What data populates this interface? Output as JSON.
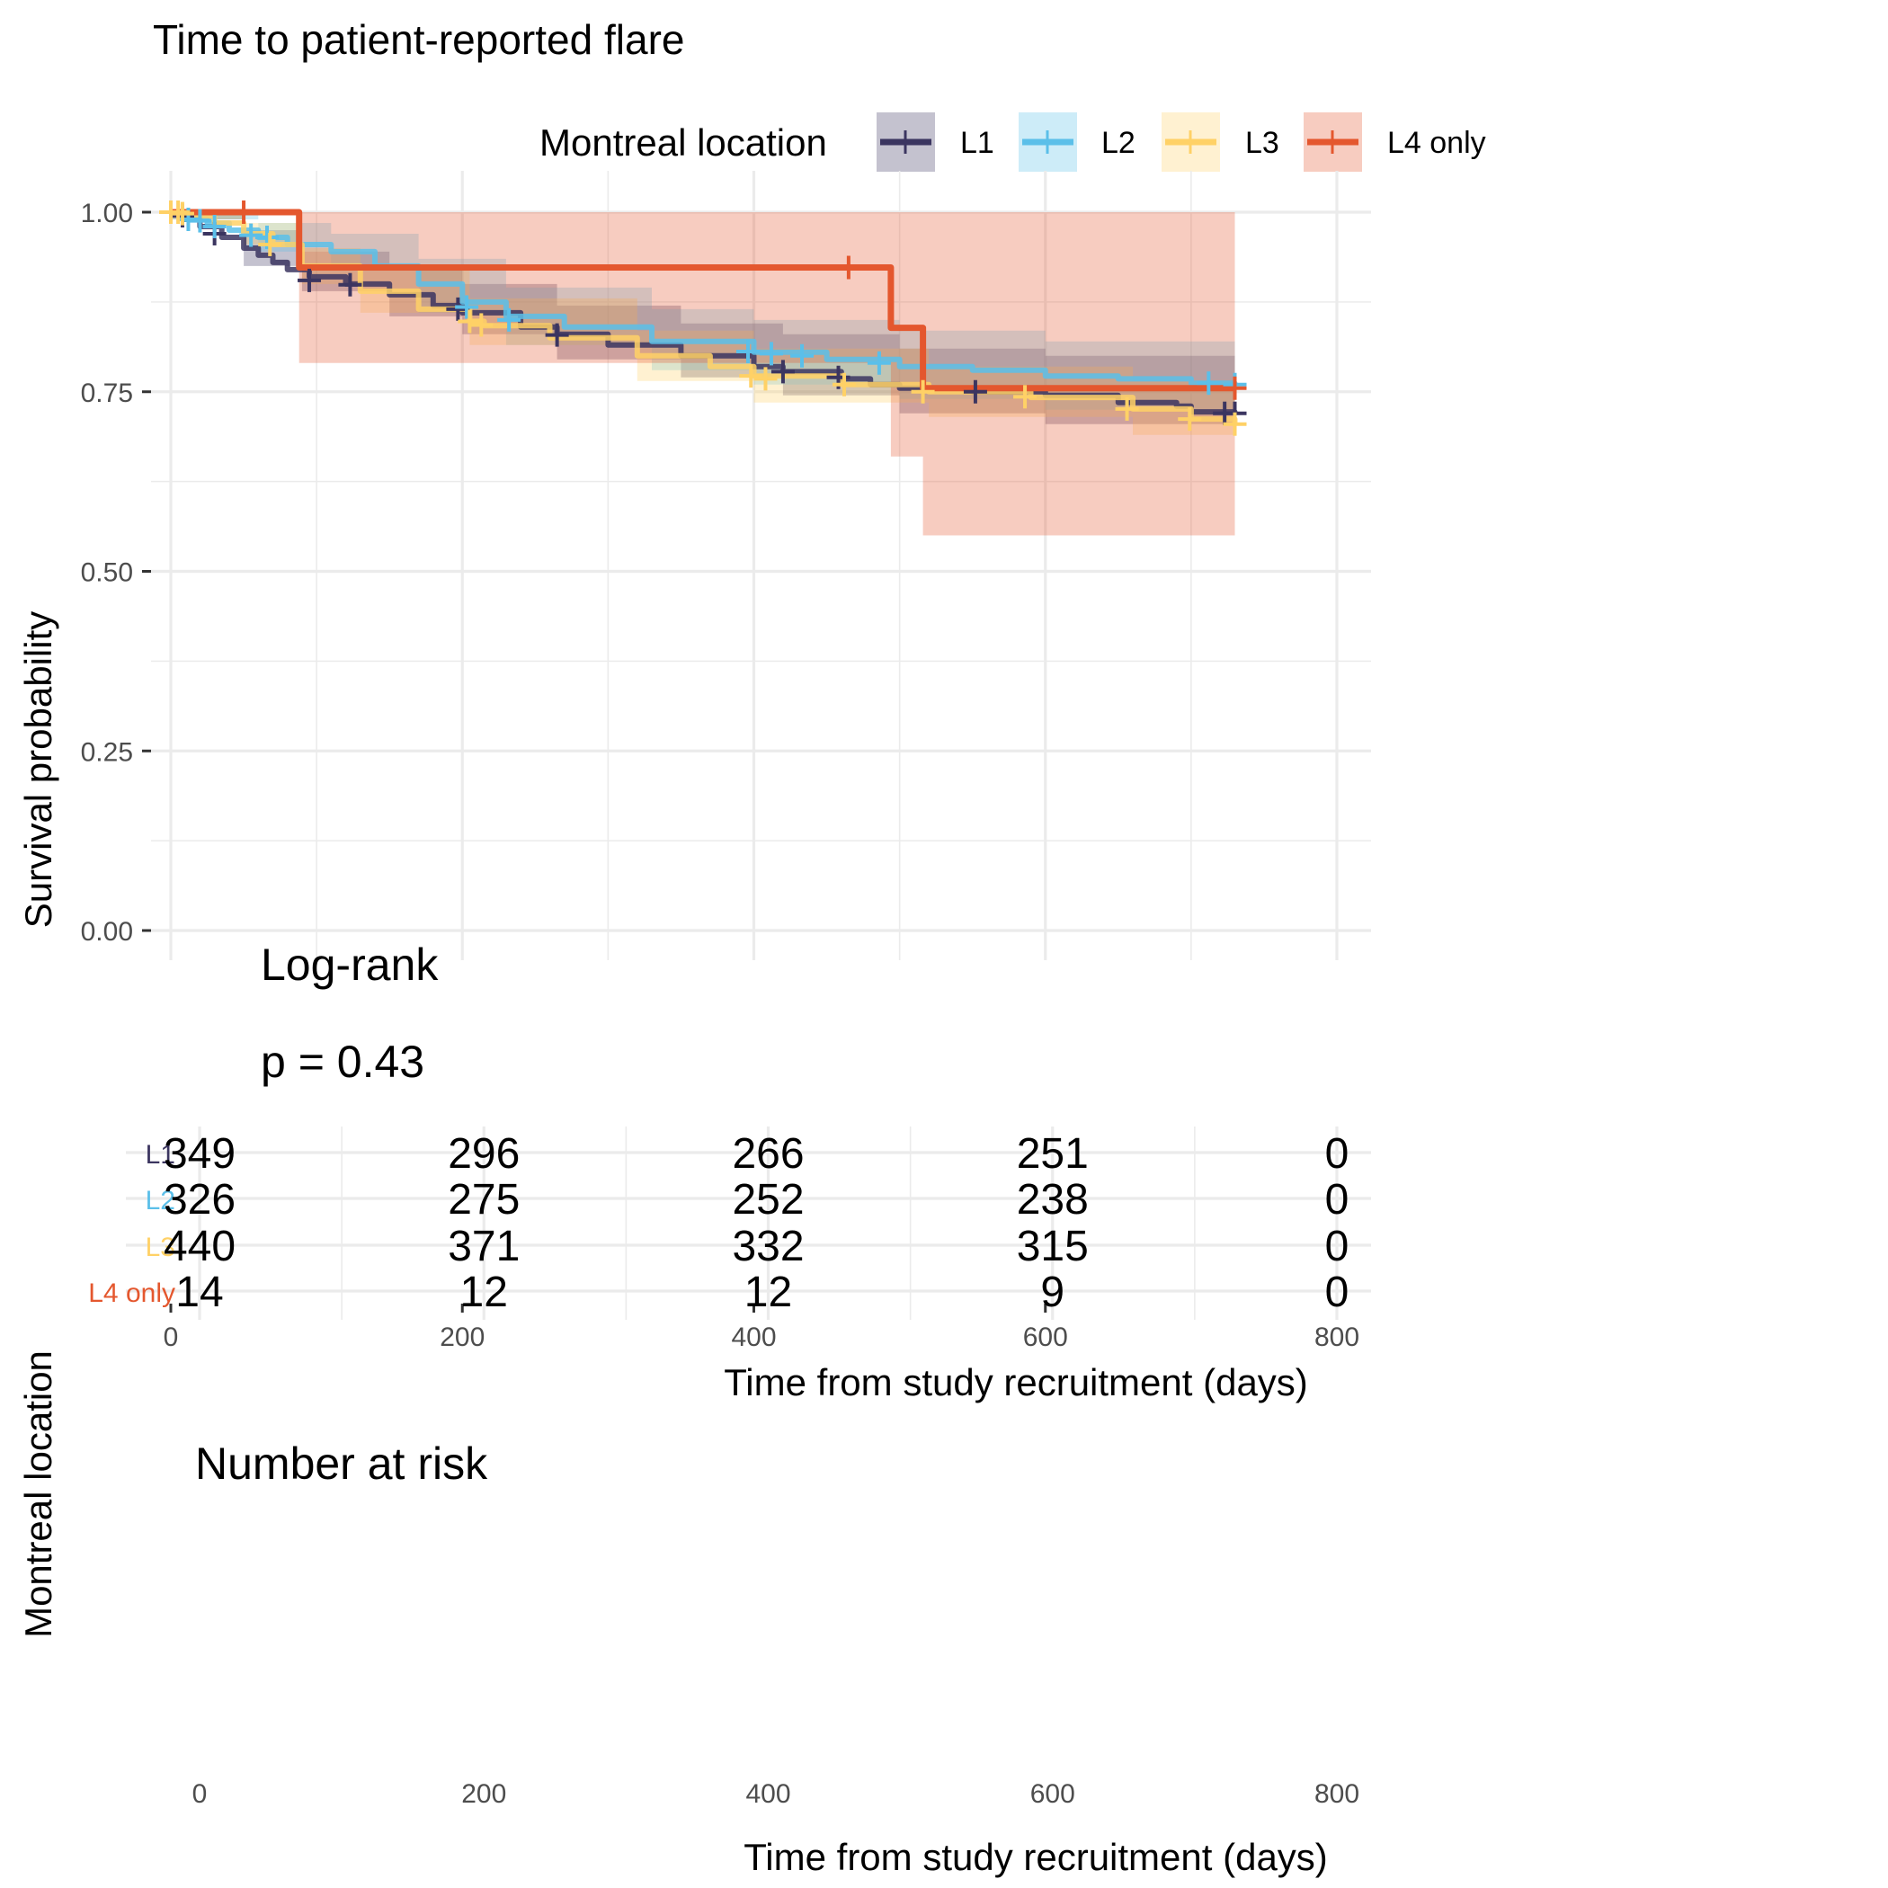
{
  "chart_data": {
    "type": "line",
    "subtype": "kaplan-meier",
    "title": "Time to patient-reported flare",
    "xlabel": "Time from study recruitment (days)",
    "ylabel": "Survival probability",
    "xlim": [
      0,
      800
    ],
    "ylim": [
      0,
      1
    ],
    "x_ticks": [
      0,
      200,
      400,
      600,
      800
    ],
    "x_tick_labels": [
      "0",
      "200",
      "400",
      "600",
      "800"
    ],
    "y_ticks": [
      0,
      0.25,
      0.5,
      0.75,
      1.0
    ],
    "y_tick_labels": [
      "0.00",
      "0.25",
      "0.50",
      "0.75",
      "1.00"
    ],
    "grid": true,
    "legend": {
      "title": "Montreal location",
      "position": "top",
      "entries": [
        "L1",
        "L2",
        "L3",
        "L4 only"
      ]
    },
    "annotation": {
      "line1": "Log-rank",
      "line2": "p = 0.43"
    },
    "series": [
      {
        "name": "L1",
        "color": "#3b3560",
        "fill": "#3b3560",
        "steps": [
          [
            0,
            1.0
          ],
          [
            8,
            0.99
          ],
          [
            20,
            0.98
          ],
          [
            35,
            0.965
          ],
          [
            50,
            0.95
          ],
          [
            60,
            0.94
          ],
          [
            70,
            0.93
          ],
          [
            80,
            0.92
          ],
          [
            95,
            0.91
          ],
          [
            120,
            0.9
          ],
          [
            150,
            0.885
          ],
          [
            180,
            0.87
          ],
          [
            200,
            0.86
          ],
          [
            240,
            0.84
          ],
          [
            265,
            0.83
          ],
          [
            300,
            0.815
          ],
          [
            350,
            0.8
          ],
          [
            400,
            0.785
          ],
          [
            420,
            0.778
          ],
          [
            460,
            0.768
          ],
          [
            480,
            0.76
          ],
          [
            500,
            0.755
          ],
          [
            550,
            0.75
          ],
          [
            600,
            0.745
          ],
          [
            650,
            0.735
          ],
          [
            690,
            0.73
          ],
          [
            700,
            0.722
          ],
          [
            730,
            0.72
          ]
        ],
        "ci_upper": [
          [
            0,
            1.0
          ],
          [
            50,
            0.975
          ],
          [
            90,
            0.945
          ],
          [
            150,
            0.92
          ],
          [
            200,
            0.9
          ],
          [
            265,
            0.87
          ],
          [
            350,
            0.845
          ],
          [
            420,
            0.83
          ],
          [
            500,
            0.81
          ],
          [
            600,
            0.8
          ],
          [
            730,
            0.79
          ]
        ],
        "ci_lower": [
          [
            0,
            0.99
          ],
          [
            50,
            0.925
          ],
          [
            90,
            0.89
          ],
          [
            150,
            0.855
          ],
          [
            200,
            0.83
          ],
          [
            265,
            0.795
          ],
          [
            350,
            0.77
          ],
          [
            420,
            0.745
          ],
          [
            500,
            0.72
          ],
          [
            600,
            0.705
          ],
          [
            730,
            0.68
          ]
        ],
        "censored": [
          [
            8,
            0.995
          ],
          [
            30,
            0.97
          ],
          [
            95,
            0.905
          ],
          [
            123,
            0.899
          ],
          [
            197,
            0.865
          ],
          [
            265,
            0.829
          ],
          [
            420,
            0.778
          ],
          [
            458,
            0.77
          ],
          [
            552,
            0.75
          ],
          [
            723,
            0.72
          ],
          [
            730,
            0.72
          ]
        ]
      },
      {
        "name": "L2",
        "color": "#5bbfe9",
        "fill": "#5bbfe9",
        "steps": [
          [
            0,
            1.0
          ],
          [
            10,
            0.99
          ],
          [
            25,
            0.985
          ],
          [
            40,
            0.975
          ],
          [
            60,
            0.965
          ],
          [
            80,
            0.955
          ],
          [
            110,
            0.945
          ],
          [
            140,
            0.925
          ],
          [
            170,
            0.9
          ],
          [
            200,
            0.875
          ],
          [
            230,
            0.855
          ],
          [
            270,
            0.84
          ],
          [
            330,
            0.82
          ],
          [
            400,
            0.805
          ],
          [
            450,
            0.795
          ],
          [
            500,
            0.785
          ],
          [
            550,
            0.78
          ],
          [
            600,
            0.772
          ],
          [
            650,
            0.768
          ],
          [
            700,
            0.762
          ],
          [
            730,
            0.76
          ]
        ],
        "ci_upper": [
          [
            0,
            1.0
          ],
          [
            60,
            0.985
          ],
          [
            110,
            0.97
          ],
          [
            170,
            0.935
          ],
          [
            230,
            0.895
          ],
          [
            330,
            0.865
          ],
          [
            400,
            0.85
          ],
          [
            500,
            0.835
          ],
          [
            600,
            0.82
          ],
          [
            730,
            0.81
          ]
        ],
        "ci_lower": [
          [
            0,
            0.99
          ],
          [
            60,
            0.945
          ],
          [
            110,
            0.92
          ],
          [
            170,
            0.86
          ],
          [
            230,
            0.815
          ],
          [
            330,
            0.78
          ],
          [
            400,
            0.76
          ],
          [
            500,
            0.74
          ],
          [
            600,
            0.725
          ],
          [
            730,
            0.71
          ]
        ],
        "censored": [
          [
            12,
            0.99
          ],
          [
            20,
            0.988
          ],
          [
            30,
            0.98
          ],
          [
            55,
            0.968
          ],
          [
            66,
            0.965
          ],
          [
            203,
            0.868
          ],
          [
            232,
            0.85
          ],
          [
            396,
            0.806
          ],
          [
            412,
            0.803
          ],
          [
            433,
            0.8
          ],
          [
            486,
            0.79
          ],
          [
            712,
            0.762
          ],
          [
            730,
            0.76
          ]
        ]
      },
      {
        "name": "L3",
        "color": "#ffd166",
        "fill": "#ffd166",
        "steps": [
          [
            0,
            1.0
          ],
          [
            10,
            0.995
          ],
          [
            30,
            0.985
          ],
          [
            50,
            0.97
          ],
          [
            70,
            0.955
          ],
          [
            90,
            0.925
          ],
          [
            130,
            0.89
          ],
          [
            170,
            0.865
          ],
          [
            205,
            0.848
          ],
          [
            215,
            0.842
          ],
          [
            260,
            0.825
          ],
          [
            320,
            0.8
          ],
          [
            370,
            0.785
          ],
          [
            400,
            0.772
          ],
          [
            460,
            0.76
          ],
          [
            520,
            0.75
          ],
          [
            590,
            0.742
          ],
          [
            660,
            0.726
          ],
          [
            700,
            0.712
          ],
          [
            730,
            0.705
          ]
        ],
        "ci_upper": [
          [
            0,
            1.0
          ],
          [
            50,
            0.985
          ],
          [
            90,
            0.95
          ],
          [
            130,
            0.92
          ],
          [
            205,
            0.88
          ],
          [
            320,
            0.835
          ],
          [
            400,
            0.81
          ],
          [
            520,
            0.785
          ],
          [
            660,
            0.765
          ],
          [
            730,
            0.745
          ]
        ],
        "ci_lower": [
          [
            0,
            0.99
          ],
          [
            50,
            0.955
          ],
          [
            90,
            0.9
          ],
          [
            130,
            0.86
          ],
          [
            205,
            0.815
          ],
          [
            320,
            0.765
          ],
          [
            400,
            0.735
          ],
          [
            520,
            0.715
          ],
          [
            660,
            0.69
          ],
          [
            730,
            0.665
          ]
        ],
        "censored": [
          [
            0,
            1.0
          ],
          [
            5,
            1.0
          ],
          [
            8,
            0.998
          ],
          [
            68,
            0.955
          ],
          [
            205,
            0.848
          ],
          [
            213,
            0.843
          ],
          [
            398,
            0.772
          ],
          [
            408,
            0.768
          ],
          [
            462,
            0.76
          ],
          [
            516,
            0.75
          ],
          [
            586,
            0.743
          ],
          [
            656,
            0.726
          ],
          [
            699,
            0.712
          ],
          [
            730,
            0.705
          ]
        ]
      },
      {
        "name": "L4 only",
        "color": "#e4572e",
        "fill": "#e4572e",
        "steps": [
          [
            0,
            1.0
          ],
          [
            88,
            0.923
          ],
          [
            494,
            0.839
          ],
          [
            516,
            0.755
          ],
          [
            730,
            0.755
          ]
        ],
        "ci_upper": [
          [
            0,
            1.0
          ],
          [
            88,
            1.0
          ],
          [
            494,
            1.0
          ],
          [
            516,
            1.0
          ],
          [
            730,
            1.0
          ]
        ],
        "ci_lower": [
          [
            0,
            1.0
          ],
          [
            88,
            0.79
          ],
          [
            494,
            0.66
          ],
          [
            516,
            0.55
          ],
          [
            730,
            0.55
          ]
        ],
        "censored": [
          [
            50,
            1.0
          ],
          [
            465,
            0.923
          ],
          [
            730,
            0.755
          ]
        ]
      }
    ],
    "risk_table": {
      "title": "Number at risk",
      "ylabel": "Montreal location",
      "xlabel": "Time from study recruitment (days)",
      "times": [
        0,
        200,
        400,
        600,
        800
      ],
      "time_labels": [
        "0",
        "200",
        "400",
        "600",
        "800"
      ],
      "rows": [
        {
          "group": "L1",
          "color": "#3b3560",
          "values": [
            "349",
            "296",
            "266",
            "251",
            "0"
          ]
        },
        {
          "group": "L2",
          "color": "#5bbfe9",
          "values": [
            "326",
            "275",
            "252",
            "238",
            "0"
          ]
        },
        {
          "group": "L3",
          "color": "#ffd166",
          "values": [
            "440",
            "371",
            "332",
            "315",
            "0"
          ]
        },
        {
          "group": "L4 only",
          "color": "#e4572e",
          "values": [
            "14",
            "12",
            "12",
            "9",
            "0"
          ]
        }
      ]
    }
  }
}
